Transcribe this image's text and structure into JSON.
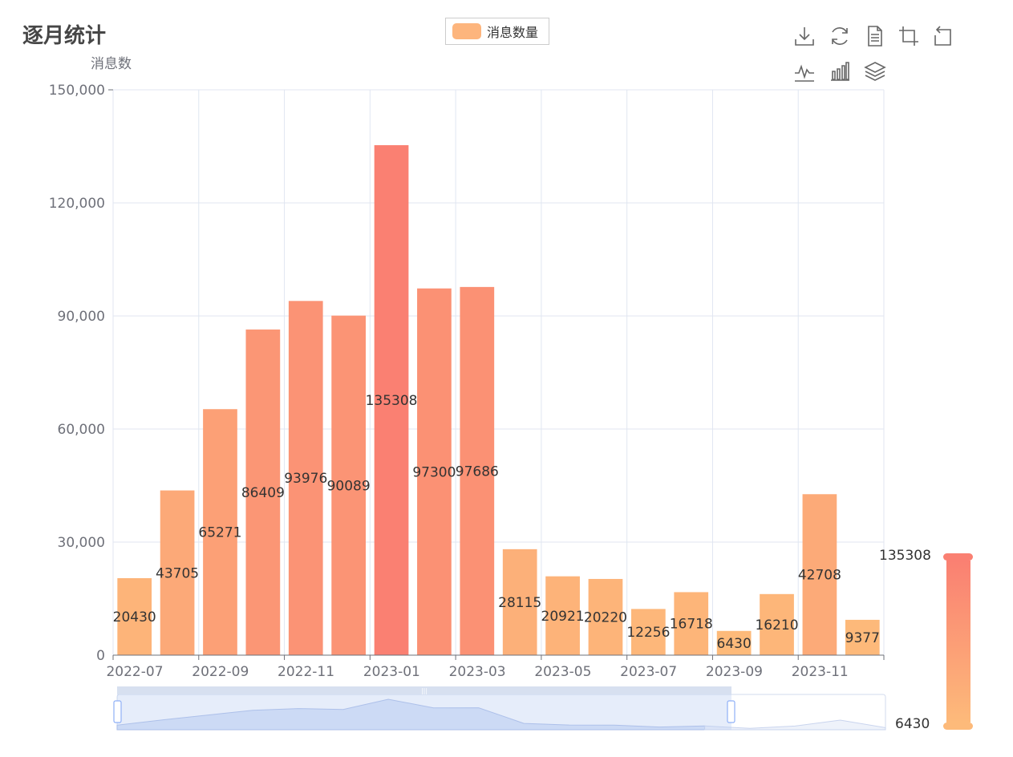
{
  "title": "逐月统计",
  "legend": {
    "label": "消息数量",
    "color": "#fdb57d"
  },
  "toolbox": {
    "icons": [
      "download-icon",
      "refresh-icon",
      "data-view-icon",
      "zoom-icon",
      "zoom-reset-icon",
      "line-chart-icon",
      "bar-chart-icon",
      "stack-icon"
    ]
  },
  "visual_map": {
    "max_label": "135308",
    "min_label": "6430",
    "color_high": "#fa8072",
    "color_low": "#fdba7a"
  },
  "chart_data": {
    "type": "bar",
    "ylabel": "消息数",
    "ylim": [
      0,
      150000
    ],
    "yticks": [
      0,
      30000,
      60000,
      90000,
      120000,
      150000
    ],
    "ytick_labels": [
      "0",
      "30,000",
      "60,000",
      "90,000",
      "120,000",
      "150,000"
    ],
    "xtick_labels": [
      "2022-07",
      "2022-09",
      "2022-11",
      "2023-01",
      "2023-03",
      "2023-05",
      "2023-07",
      "2023-09",
      "2023-11"
    ],
    "categories": [
      "2022-07",
      "2022-08",
      "2022-09",
      "2022-10",
      "2022-11",
      "2022-12",
      "2023-01",
      "2023-02",
      "2023-03",
      "2023-04",
      "2023-05",
      "2023-06",
      "2023-07",
      "2023-08",
      "2023-09",
      "2023-10",
      "2023-11",
      "2023-12"
    ],
    "series": [
      {
        "name": "消息数量",
        "values": [
          20430,
          43705,
          65271,
          86409,
          93976,
          90089,
          135308,
          97300,
          97686,
          28115,
          20921,
          20220,
          12256,
          16718,
          6430,
          16210,
          42708,
          9377
        ],
        "data_labels": [
          "20430",
          "43705",
          "65271",
          "86409",
          "93976",
          "90089",
          "135308",
          "97300",
          "97686",
          "28115",
          "20921",
          "20220",
          "12256",
          "16718",
          "6430",
          "16210",
          "42708",
          "9377"
        ]
      }
    ],
    "grid": true,
    "legend_position": "top-center"
  }
}
